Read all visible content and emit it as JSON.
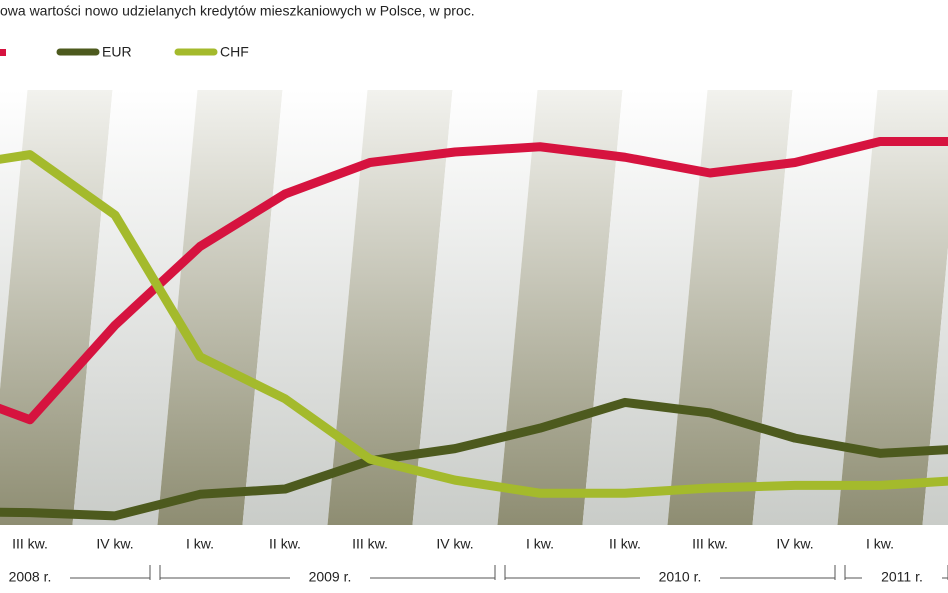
{
  "chart_data": {
    "type": "line",
    "title": "owa wartości nowo udzielanych kredytów mieszkaniowych w Polsce, w proc.",
    "categories": [
      null,
      "III kw.",
      "IV kw.",
      "I kw.",
      "II kw.",
      "III kw.",
      "IV kw.",
      "I kw.",
      "II kw.",
      "III kw.",
      "IV kw.",
      "I kw.",
      null
    ],
    "years": [
      "2008 r.",
      "2009 r.",
      "2010 r.",
      "2011 r."
    ],
    "ylim": [
      0,
      80
    ],
    "series": [
      {
        "color": "#d6133f",
        "values": [
          27,
          21,
          39,
          54,
          64,
          70,
          72,
          73,
          71,
          68,
          70,
          74,
          74
        ]
      },
      {
        "name": "EUR",
        "color": "#4d5a1e",
        "values": [
          3.5,
          3.3,
          2.7,
          6.8,
          7.8,
          13.2,
          15.5,
          19.4,
          24.3,
          22.3,
          17.5,
          14.6,
          15.5
        ]
      },
      {
        "name": "CHF",
        "color": "#a4ba2c",
        "values": [
          69,
          71.5,
          60,
          33,
          25,
          13.5,
          9.5,
          7,
          7,
          8,
          8.5,
          8.5,
          9.5
        ]
      }
    ]
  }
}
